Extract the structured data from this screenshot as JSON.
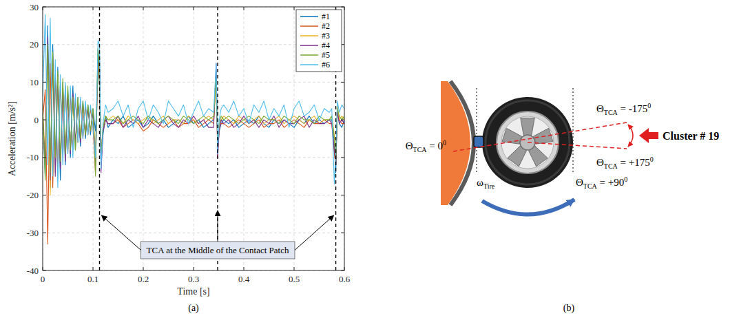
{
  "panel_labels": [
    "(a)",
    "(b)"
  ],
  "chart_data": {
    "type": "line",
    "x_label": "Time [s]",
    "y_label": "Acceleration [m/s²]",
    "xlim": [
      0,
      0.6
    ],
    "xticks": [
      0,
      0.1,
      0.2,
      0.3,
      0.4,
      0.5,
      0.6
    ],
    "ylim": [
      -40,
      30
    ],
    "yticks": [
      -40,
      -30,
      -20,
      -10,
      0,
      10,
      20,
      30
    ],
    "grid": true,
    "legend": "upper right",
    "annotation": {
      "text": "TCA at the Middle of the Contact Patch",
      "x": [
        0.113,
        0.348,
        0.583
      ]
    },
    "x": [
      0,
      0.005,
      0.01,
      0.015,
      0.02,
      0.025,
      0.03,
      0.035,
      0.04,
      0.045,
      0.05,
      0.055,
      0.06,
      0.065,
      0.07,
      0.075,
      0.08,
      0.085,
      0.09,
      0.095,
      0.1,
      0.105,
      0.11,
      0.113,
      0.116,
      0.12,
      0.125,
      0.13,
      0.14,
      0.15,
      0.16,
      0.17,
      0.18,
      0.19,
      0.2,
      0.21,
      0.22,
      0.23,
      0.24,
      0.25,
      0.26,
      0.27,
      0.28,
      0.29,
      0.3,
      0.31,
      0.32,
      0.33,
      0.34,
      0.345,
      0.348,
      0.351,
      0.355,
      0.36,
      0.37,
      0.38,
      0.39,
      0.4,
      0.41,
      0.42,
      0.43,
      0.44,
      0.45,
      0.46,
      0.47,
      0.48,
      0.49,
      0.5,
      0.51,
      0.52,
      0.53,
      0.54,
      0.55,
      0.56,
      0.57,
      0.575,
      0.58,
      0.583,
      0.586,
      0.59,
      0.595,
      0.6
    ],
    "series": [
      {
        "name": "#1",
        "color": "#0072bd",
        "values": [
          2,
          -15,
          25,
          -18,
          20,
          -12,
          14,
          -16,
          10,
          -12,
          8,
          -10,
          9,
          -8,
          6,
          -7,
          5,
          -5,
          4,
          -4,
          3,
          -3,
          12,
          18,
          -12,
          -4,
          1,
          -2,
          0,
          -1,
          1,
          -2,
          -1,
          0,
          -2,
          -1,
          1,
          -1,
          0,
          -2,
          -1,
          0,
          -1,
          1,
          -1,
          0,
          -2,
          -1,
          0,
          13,
          -8,
          -3,
          -1,
          0,
          -1,
          0,
          -2,
          -1,
          0,
          -1,
          1,
          -1,
          -2,
          0,
          -1,
          0,
          -1,
          -2,
          0,
          -1,
          1,
          -1,
          0,
          -1,
          0,
          0,
          -6,
          -14,
          3,
          -1,
          -2,
          0
        ]
      },
      {
        "name": "#2",
        "color": "#d95319",
        "values": [
          0,
          8,
          -33,
          15,
          -18,
          12,
          -14,
          10,
          -10,
          9,
          -9,
          7,
          -8,
          6,
          -6,
          5,
          -5,
          4,
          -4,
          3,
          -2,
          -14,
          19,
          10,
          -8,
          -3,
          0,
          -1,
          -1,
          0,
          -2,
          -1,
          0,
          -1,
          -3,
          -2,
          0,
          -1,
          -2,
          -1,
          0,
          -2,
          -1,
          -1,
          0,
          -2,
          -1,
          0,
          -1,
          12,
          -10,
          -2,
          -1,
          -1,
          -2,
          -1,
          0,
          -1,
          -2,
          -1,
          0,
          -2,
          -1,
          -1,
          0,
          -2,
          -1,
          0,
          -1,
          -2,
          0,
          -1,
          -1,
          0,
          -1,
          -1,
          -9,
          -12,
          2,
          0,
          -1,
          -1
        ]
      },
      {
        "name": "#3",
        "color": "#edb120",
        "values": [
          3,
          -10,
          18,
          -20,
          15,
          -14,
          11,
          -12,
          9,
          -10,
          7,
          -8,
          6,
          -7,
          5,
          -5,
          4,
          -4,
          3,
          -3,
          2,
          -8,
          18,
          9,
          -10,
          -2,
          1,
          0,
          1,
          0,
          -1,
          1,
          0,
          -1,
          0,
          1,
          -1,
          0,
          1,
          -1,
          0,
          0,
          -1,
          1,
          0,
          -1,
          0,
          1,
          0,
          10,
          -6,
          -2,
          0,
          1,
          0,
          -1,
          1,
          0,
          -1,
          0,
          1,
          -1,
          0,
          0,
          1,
          -1,
          0,
          1,
          0,
          -1,
          0,
          1,
          -1,
          0,
          0,
          1,
          -4,
          -10,
          4,
          0,
          1,
          0
        ]
      },
      {
        "name": "#4",
        "color": "#7e2f8e",
        "values": [
          1,
          -12,
          22,
          -16,
          17,
          -15,
          12,
          -13,
          8,
          -11,
          7,
          -9,
          7,
          -6,
          5,
          -6,
          4,
          -4,
          3,
          -3,
          2,
          -12,
          16,
          14,
          -14,
          -3,
          0,
          -1,
          -1,
          1,
          -2,
          0,
          -1,
          1,
          -2,
          0,
          -1,
          -2,
          0,
          1,
          -1,
          -2,
          0,
          -1,
          1,
          -1,
          0,
          -2,
          -2,
          15,
          -10,
          -3,
          0,
          -1,
          0,
          -2,
          -1,
          1,
          -1,
          0,
          -2,
          0,
          -1,
          1,
          -2,
          0,
          -1,
          -1,
          0,
          1,
          -2,
          0,
          -1,
          -1,
          0,
          -1,
          -8,
          -12,
          2,
          -1,
          0,
          -1
        ]
      },
      {
        "name": "#5",
        "color": "#77ac30",
        "values": [
          4,
          -16,
          20,
          -14,
          18,
          -10,
          13,
          -11,
          11,
          -9,
          9,
          -8,
          6,
          -8,
          6,
          -5,
          5,
          -4,
          4,
          -3,
          3,
          -15,
          19,
          12,
          -9,
          -2,
          1,
          0,
          0,
          1,
          -1,
          0,
          1,
          0,
          -1,
          1,
          0,
          -1,
          0,
          1,
          0,
          -1,
          1,
          0,
          -1,
          0,
          1,
          0,
          1,
          11,
          -7,
          -1,
          1,
          0,
          1,
          0,
          -1,
          0,
          1,
          0,
          -1,
          1,
          0,
          0,
          -1,
          1,
          0,
          -1,
          1,
          0,
          0,
          -1,
          1,
          0,
          0,
          1,
          -5,
          -11,
          3,
          1,
          0,
          1
        ]
      },
      {
        "name": "#6",
        "color": "#4dbeee",
        "values": [
          6,
          28,
          -12,
          27,
          -15,
          16,
          -18,
          12,
          -12,
          10,
          -9,
          9,
          -10,
          7,
          -6,
          6,
          -5,
          5,
          -4,
          4,
          -2,
          -10,
          21,
          20,
          -13,
          -1,
          4,
          2,
          3,
          5,
          1,
          4,
          -2,
          3,
          5,
          0,
          4,
          2,
          -1,
          5,
          3,
          1,
          4,
          -1,
          2,
          5,
          1,
          3,
          2,
          15,
          -9,
          0,
          3,
          4,
          2,
          5,
          1,
          3,
          -1,
          4,
          2,
          5,
          0,
          3,
          1,
          4,
          -2,
          3,
          5,
          1,
          2,
          4,
          0,
          3,
          2,
          3,
          -17,
          -9,
          5,
          2,
          4,
          3
        ]
      }
    ]
  },
  "diagram": {
    "angle_labels": [
      {
        "symbol": "Θ",
        "sub": "TCA",
        "text": " = 0",
        "sup": "0"
      },
      {
        "symbol": "Θ",
        "sub": "TCA",
        "text": " = -175",
        "sup": "0"
      },
      {
        "symbol": "Θ",
        "sub": "TCA",
        "text": " = +175",
        "sup": "0"
      },
      {
        "symbol": "Θ",
        "sub": "TCA",
        "text": " = +90",
        "sup": "0"
      }
    ],
    "rotation_label": {
      "symbol": "ω",
      "sub": "Tire"
    },
    "cluster_label": "Cluster # 19"
  }
}
